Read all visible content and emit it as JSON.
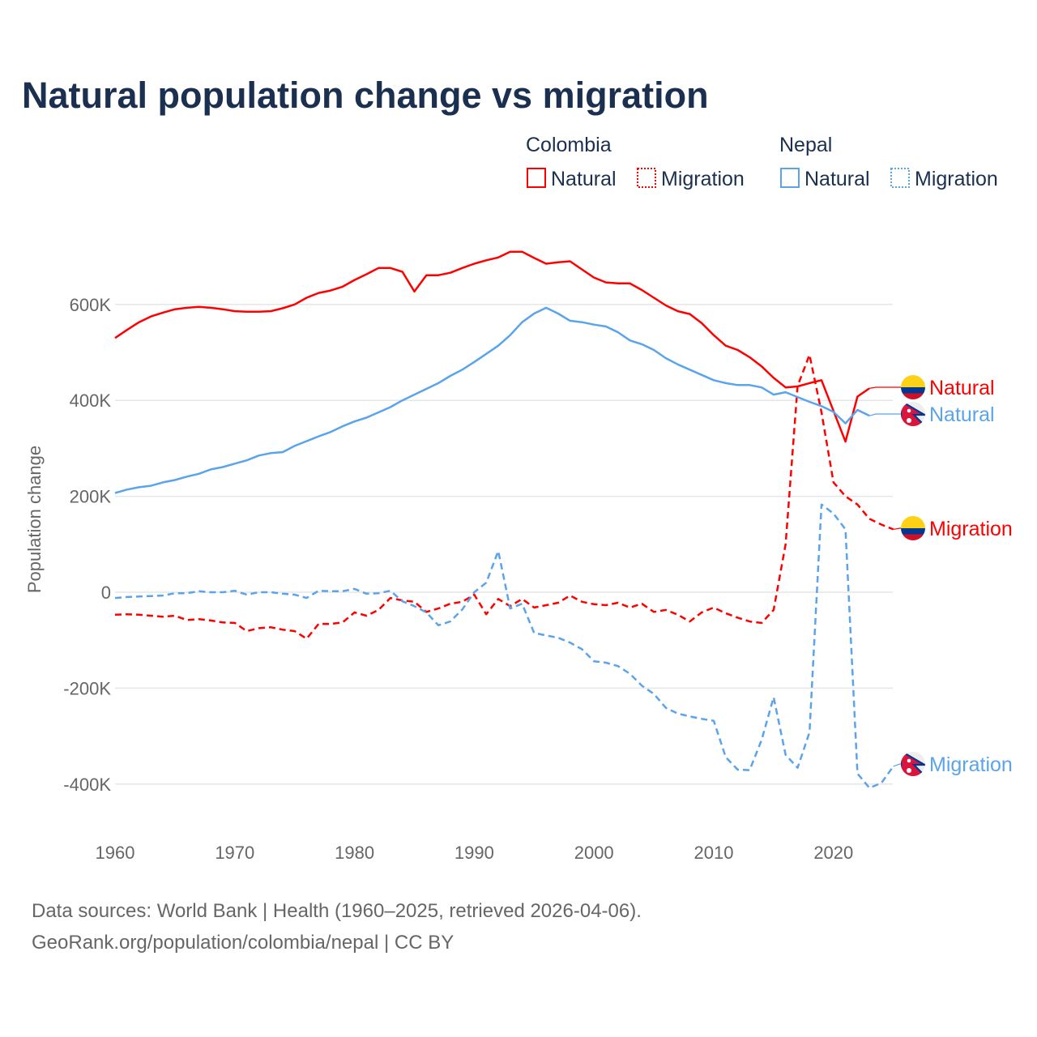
{
  "title": "Natural population change vs migration",
  "legend": {
    "groups": [
      {
        "name": "Colombia",
        "items": [
          {
            "label": "Natural",
            "style": "solid"
          },
          {
            "label": "Migration",
            "style": "dotted"
          }
        ]
      },
      {
        "name": "Nepal",
        "items": [
          {
            "label": "Natural",
            "style": "solid"
          },
          {
            "label": "Migration",
            "style": "dotted"
          }
        ]
      }
    ]
  },
  "colors": {
    "colombia": "#ff0000",
    "nepal": "#5ba3ea"
  },
  "source_lines": [
    "Data sources: World Bank | Health (1960–2025, retrieved 2026-04-06).",
    "GeoRank.org/population/colombia/nepal | CC BY"
  ],
  "chart_data": {
    "type": "line",
    "title": "Natural population change vs migration",
    "xlabel": "",
    "ylabel": "Population change",
    "xlim": [
      1960,
      2025
    ],
    "ylim": [
      -500000,
      750000
    ],
    "x_ticks": [
      1960,
      1970,
      1980,
      1990,
      2000,
      2010,
      2020
    ],
    "x_tick_labels": [
      "1960",
      "1970",
      "1980",
      "1990",
      "2000",
      "2010",
      "2020"
    ],
    "y_ticks": [
      600000,
      400000,
      200000,
      0,
      -200000,
      -400000
    ],
    "y_tick_labels": [
      "600K",
      "400K",
      "200K",
      "0",
      "-200K",
      "-400K"
    ],
    "grid": true,
    "legend_position": "top-right",
    "series": [
      {
        "name": "Colombia Natural",
        "country": "Colombia",
        "kind": "Natural",
        "dash": "solid",
        "color": "#ff0000",
        "end_label": "Natural",
        "start_year": 1960,
        "values_k": [
          530,
          547,
          563,
          575,
          583,
          590,
          593,
          595,
          593,
          590,
          586,
          585,
          585,
          586,
          592,
          600,
          614,
          624,
          629,
          637,
          651,
          663,
          676,
          676,
          668,
          627,
          661,
          661,
          666,
          676,
          685,
          692,
          698,
          710,
          710,
          697,
          685,
          688,
          690,
          673,
          656,
          646,
          644,
          644,
          630,
          614,
          598,
          586,
          580,
          561,
          536,
          514,
          505,
          490,
          471,
          447,
          427,
          429,
          436,
          442,
          378,
          314,
          408,
          425
        ]
      },
      {
        "name": "Colombia Migration",
        "country": "Colombia",
        "kind": "Migration",
        "dash": "dashed",
        "color": "#ff0000",
        "end_label": "Migration",
        "start_year": 1960,
        "values_k": [
          -47,
          -46,
          -47,
          -49,
          -51,
          -49,
          -58,
          -56,
          -59,
          -63,
          -64,
          -81,
          -75,
          -73,
          -78,
          -81,
          -97,
          -66,
          -66,
          -63,
          -42,
          -49,
          -37,
          -12,
          -17,
          -20,
          -41,
          -34,
          -24,
          -20,
          -5,
          -46,
          -14,
          -29,
          -14,
          -32,
          -27,
          -22,
          -7,
          -20,
          -25,
          -27,
          -22,
          -32,
          -24,
          -41,
          -37,
          -47,
          -61,
          -42,
          -32,
          -44,
          -53,
          -61,
          -64,
          -37,
          100,
          430,
          495,
          375,
          229,
          200,
          183,
          153,
          141,
          131
        ]
      },
      {
        "name": "Nepal Natural",
        "country": "Nepal",
        "kind": "Natural",
        "dash": "solid",
        "color": "#5ba3ea",
        "end_label": "Natural",
        "start_year": 1960,
        "values_k": [
          207,
          214,
          219,
          222,
          229,
          234,
          241,
          247,
          256,
          261,
          268,
          275,
          285,
          290,
          292,
          305,
          315,
          325,
          334,
          346,
          356,
          364,
          375,
          386,
          400,
          412,
          424,
          436,
          451,
          464,
          480,
          497,
          514,
          536,
          563,
          581,
          593,
          581,
          566,
          563,
          558,
          554,
          542,
          525,
          517,
          505,
          488,
          475,
          464,
          453,
          442,
          436,
          432,
          432,
          427,
          412,
          417,
          407,
          397,
          388,
          376,
          352,
          380,
          368
        ]
      },
      {
        "name": "Nepal Migration",
        "country": "Nepal",
        "kind": "Migration",
        "dash": "dashed",
        "color": "#5ba3ea",
        "end_label": "Migration",
        "start_year": 1960,
        "values_k": [
          -12,
          -10,
          -9,
          -8,
          -7,
          -2,
          -2,
          2,
          0,
          0,
          3,
          -5,
          0,
          0,
          -3,
          -5,
          -12,
          3,
          2,
          2,
          7,
          -3,
          -2,
          3,
          -19,
          -29,
          -42,
          -69,
          -61,
          -36,
          0,
          20,
          86,
          -34,
          -24,
          -85,
          -90,
          -95,
          -105,
          -119,
          -144,
          -147,
          -154,
          -170,
          -195,
          -212,
          -241,
          -253,
          -259,
          -264,
          -268,
          -344,
          -370,
          -371,
          -308,
          -219,
          -339,
          -366,
          -292,
          183,
          164,
          131,
          -378,
          -408,
          -398,
          -363
        ]
      }
    ]
  }
}
